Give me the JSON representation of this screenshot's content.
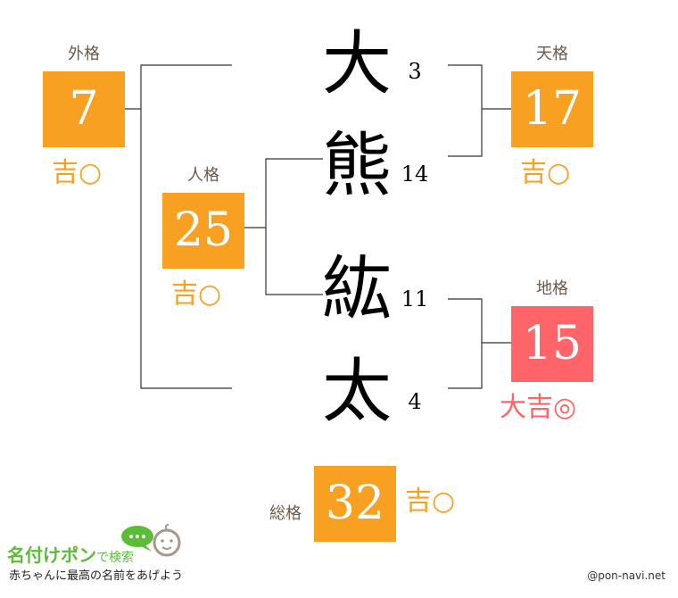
{
  "colors": {
    "good": "#f7a021",
    "great": "#ff6468",
    "label": "#6b5a4a",
    "logo_green": "#5dbb3a"
  },
  "name": {
    "chars": [
      {
        "char": "大",
        "strokes": "3"
      },
      {
        "char": "熊",
        "strokes": "14"
      },
      {
        "char": "紘",
        "strokes": "11"
      },
      {
        "char": "太",
        "strokes": "4"
      }
    ]
  },
  "kaku": {
    "gaikaku": {
      "label": "外格",
      "value": "7",
      "fortune": "吉○"
    },
    "tenkaku": {
      "label": "天格",
      "value": "17",
      "fortune": "吉○"
    },
    "jinkaku": {
      "label": "人格",
      "value": "25",
      "fortune": "吉○"
    },
    "chikaku": {
      "label": "地格",
      "value": "15",
      "fortune": "大吉◎"
    },
    "soukaku": {
      "label": "総格",
      "value": "32",
      "fortune": "吉○"
    }
  },
  "footer": {
    "logo_title": "名付けポン",
    "logo_suffix": "で検索",
    "logo_tagline": "赤ちゃんに最高の名前をあげよう",
    "copyright": "@pon-navi.net"
  }
}
